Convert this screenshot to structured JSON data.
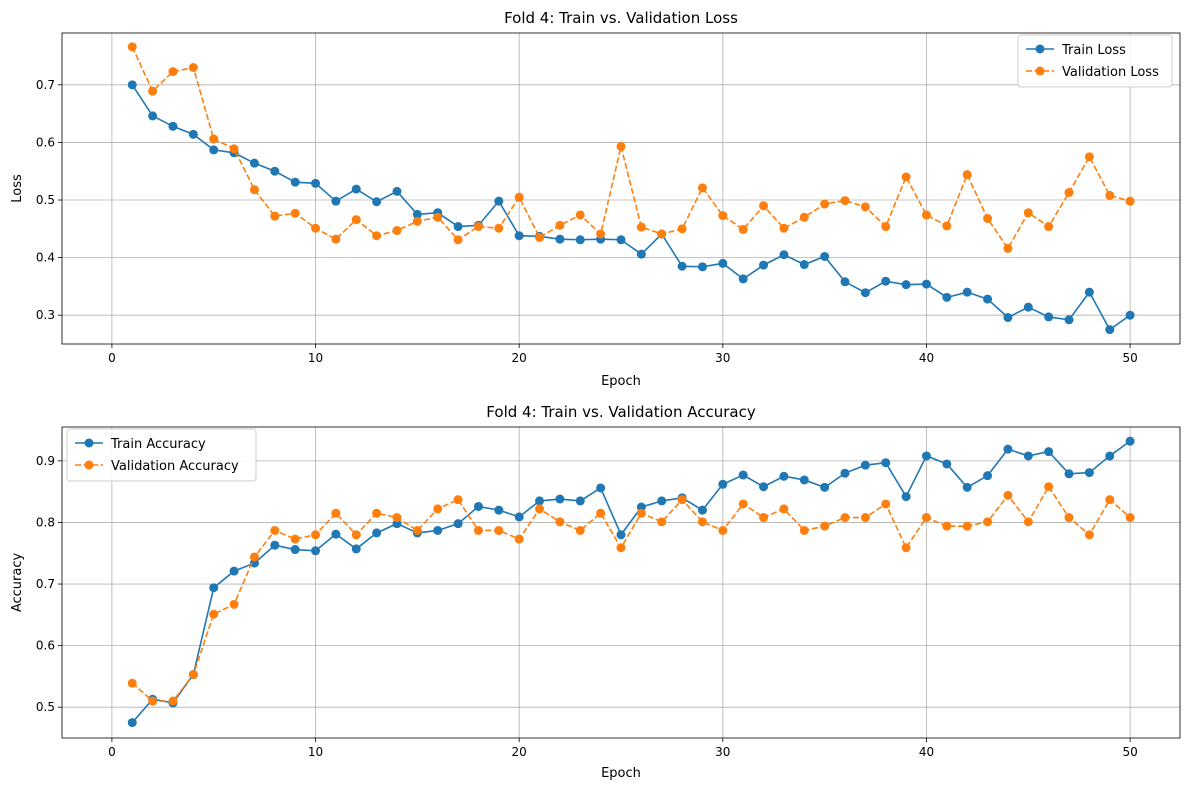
{
  "chart_data": [
    {
      "type": "line",
      "title": "Fold 4: Train vs. Validation Loss",
      "xlabel": "Epoch",
      "ylabel": "Loss",
      "xlim": [
        -2.45,
        52.45
      ],
      "ylim": [
        0.25,
        0.79
      ],
      "xticks": [
        0,
        10,
        20,
        30,
        40,
        50
      ],
      "yticks": [
        0.3,
        0.4,
        0.5,
        0.6,
        0.7
      ],
      "ytick_labels": [
        "0.3",
        "0.4",
        "0.5",
        "0.6",
        "0.7"
      ],
      "grid": true,
      "legend_position": "top-right",
      "x": [
        1,
        2,
        3,
        4,
        5,
        6,
        7,
        8,
        9,
        10,
        11,
        12,
        13,
        14,
        15,
        16,
        17,
        18,
        19,
        20,
        21,
        22,
        23,
        24,
        25,
        26,
        27,
        28,
        29,
        30,
        31,
        32,
        33,
        34,
        35,
        36,
        37,
        38,
        39,
        40,
        41,
        42,
        43,
        44,
        45,
        46,
        47,
        48,
        49,
        50
      ],
      "series": [
        {
          "name": "Train Loss",
          "color": "#1f77b4",
          "dashed": false,
          "values": [
            0.7,
            0.646,
            0.628,
            0.614,
            0.587,
            0.582,
            0.564,
            0.55,
            0.531,
            0.529,
            0.498,
            0.519,
            0.497,
            0.515,
            0.475,
            0.478,
            0.454,
            0.456,
            0.498,
            0.438,
            0.437,
            0.432,
            0.431,
            0.432,
            0.431,
            0.406,
            0.441,
            0.385,
            0.384,
            0.39,
            0.363,
            0.387,
            0.405,
            0.388,
            0.402,
            0.358,
            0.339,
            0.359,
            0.353,
            0.354,
            0.331,
            0.34,
            0.328,
            0.296,
            0.314,
            0.297,
            0.292,
            0.34,
            0.275,
            0.3
          ]
        },
        {
          "name": "Validation Loss",
          "color": "#ff7f0e",
          "dashed": true,
          "values": [
            0.766,
            0.689,
            0.723,
            0.73,
            0.606,
            0.589,
            0.518,
            0.472,
            0.477,
            0.451,
            0.432,
            0.466,
            0.438,
            0.447,
            0.463,
            0.47,
            0.431,
            0.454,
            0.451,
            0.505,
            0.435,
            0.456,
            0.474,
            0.441,
            0.593,
            0.453,
            0.441,
            0.45,
            0.521,
            0.473,
            0.449,
            0.49,
            0.451,
            0.47,
            0.493,
            0.499,
            0.488,
            0.454,
            0.54,
            0.474,
            0.455,
            0.544,
            0.468,
            0.416,
            0.478,
            0.454,
            0.513,
            0.575,
            0.508,
            0.498
          ]
        }
      ]
    },
    {
      "type": "line",
      "title": "Fold 4: Train vs. Validation Accuracy",
      "xlabel": "Epoch",
      "ylabel": "Accuracy",
      "xlim": [
        -2.45,
        52.45
      ],
      "ylim": [
        0.45,
        0.955
      ],
      "xticks": [
        0,
        10,
        20,
        30,
        40,
        50
      ],
      "yticks": [
        0.5,
        0.6,
        0.7,
        0.8,
        0.9
      ],
      "ytick_labels": [
        "0.5",
        "0.6",
        "0.7",
        "0.8",
        "0.9"
      ],
      "grid": true,
      "legend_position": "top-left",
      "x": [
        1,
        2,
        3,
        4,
        5,
        6,
        7,
        8,
        9,
        10,
        11,
        12,
        13,
        14,
        15,
        16,
        17,
        18,
        19,
        20,
        21,
        22,
        23,
        24,
        25,
        26,
        27,
        28,
        29,
        30,
        31,
        32,
        33,
        34,
        35,
        36,
        37,
        38,
        39,
        40,
        41,
        42,
        43,
        44,
        45,
        46,
        47,
        48,
        49,
        50
      ],
      "series": [
        {
          "name": "Train Accuracy",
          "color": "#1f77b4",
          "dashed": false,
          "values": [
            0.475,
            0.513,
            0.507,
            0.553,
            0.694,
            0.721,
            0.734,
            0.763,
            0.756,
            0.754,
            0.781,
            0.757,
            0.783,
            0.798,
            0.783,
            0.787,
            0.798,
            0.826,
            0.82,
            0.809,
            0.835,
            0.838,
            0.835,
            0.856,
            0.78,
            0.825,
            0.835,
            0.84,
            0.82,
            0.862,
            0.877,
            0.858,
            0.875,
            0.869,
            0.857,
            0.88,
            0.893,
            0.897,
            0.842,
            0.908,
            0.895,
            0.857,
            0.876,
            0.919,
            0.908,
            0.915,
            0.879,
            0.881,
            0.908,
            0.932
          ]
        },
        {
          "name": "Validation Accuracy",
          "color": "#ff7f0e",
          "dashed": true,
          "values": [
            0.539,
            0.51,
            0.51,
            0.553,
            0.651,
            0.667,
            0.744,
            0.787,
            0.773,
            0.78,
            0.815,
            0.78,
            0.815,
            0.808,
            0.787,
            0.822,
            0.837,
            0.787,
            0.787,
            0.773,
            0.822,
            0.801,
            0.787,
            0.815,
            0.759,
            0.815,
            0.801,
            0.837,
            0.801,
            0.787,
            0.83,
            0.808,
            0.822,
            0.787,
            0.794,
            0.808,
            0.808,
            0.83,
            0.759,
            0.808,
            0.794,
            0.794,
            0.801,
            0.844,
            0.801,
            0.858,
            0.808,
            0.78,
            0.837,
            0.808
          ]
        }
      ]
    }
  ]
}
